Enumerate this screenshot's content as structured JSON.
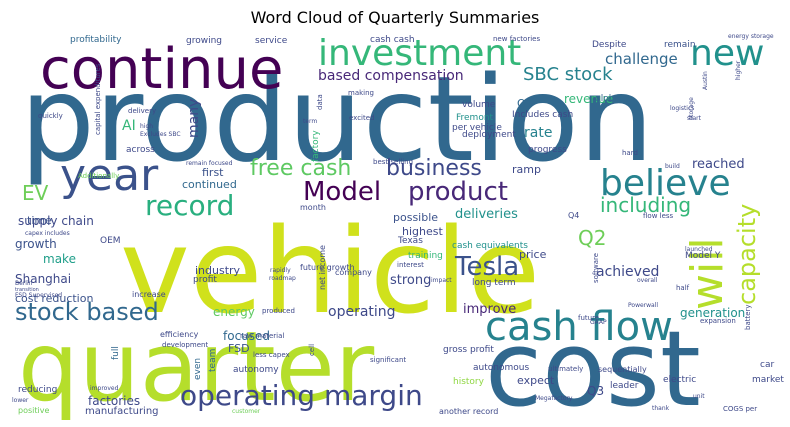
{
  "title": "Word Cloud of Quarterly Summaries",
  "words": [
    {
      "text": "production",
      "color": "#31688e"
    },
    {
      "text": "vehicle",
      "color": "#d0e11c"
    },
    {
      "text": "quarter",
      "color": "#b5de2b"
    },
    {
      "text": "cost",
      "color": "#31688e"
    },
    {
      "text": "continue",
      "color": "#440154"
    },
    {
      "text": "investment",
      "color": "#35b779"
    },
    {
      "text": "new",
      "color": "#21918c"
    },
    {
      "text": "year",
      "color": "#3b528b"
    },
    {
      "text": "believe",
      "color": "#26828e"
    },
    {
      "text": "will",
      "color": "#b5de2b"
    },
    {
      "text": "cash flow",
      "color": "#26828e"
    },
    {
      "text": "Model",
      "color": "#440154"
    },
    {
      "text": "product",
      "color": "#482878"
    },
    {
      "text": "record",
      "color": "#29af7f"
    },
    {
      "text": "free cash",
      "color": "#5ec962"
    },
    {
      "text": "business",
      "color": "#3e4989"
    },
    {
      "text": "capacity",
      "color": "#b5de2b"
    },
    {
      "text": "Tesla",
      "color": "#3b528b"
    },
    {
      "text": "operating margin",
      "color": "#3e4989"
    },
    {
      "text": "stock based",
      "color": "#31688e"
    },
    {
      "text": "including",
      "color": "#35b779"
    },
    {
      "text": "SBC stock",
      "color": "#26828e"
    },
    {
      "text": "based compensation",
      "color": "#482878"
    },
    {
      "text": "challenge",
      "color": "#31688e"
    },
    {
      "text": "Q2",
      "color": "#6ece58"
    },
    {
      "text": "EV",
      "color": "#6ece58"
    },
    {
      "text": "AI",
      "color": "#35b779"
    },
    {
      "text": "many",
      "color": "#3e4989"
    },
    {
      "text": "supply chain",
      "color": "#3e4989"
    },
    {
      "text": "revenue",
      "color": "#35b779"
    },
    {
      "text": "rate",
      "color": "#26828e"
    },
    {
      "text": "reached",
      "color": "#3e4989"
    },
    {
      "text": "deliveries",
      "color": "#21918c"
    },
    {
      "text": "possible",
      "color": "#3b528b"
    },
    {
      "text": "achieved",
      "color": "#3e4989"
    },
    {
      "text": "operating",
      "color": "#3e4989"
    },
    {
      "text": "improve",
      "color": "#482878"
    },
    {
      "text": "strong",
      "color": "#3e4989"
    },
    {
      "text": "generation",
      "color": "#21918c"
    },
    {
      "text": "growth",
      "color": "#3b528b"
    },
    {
      "text": "make",
      "color": "#1f9e89"
    },
    {
      "text": "Shanghai",
      "color": "#3e4989"
    },
    {
      "text": "cost reduction",
      "color": "#3b528b"
    },
    {
      "text": "industry",
      "color": "#3e4989"
    },
    {
      "text": "energy",
      "color": "#5ec962"
    },
    {
      "text": "focused",
      "color": "#31688e"
    },
    {
      "text": "FSD",
      "color": "#3b528b"
    },
    {
      "text": "factories",
      "color": "#3e4989"
    },
    {
      "text": "manufacturing",
      "color": "#3e4989"
    },
    {
      "text": "Q3",
      "color": "#3e4989"
    },
    {
      "text": "expect",
      "color": "#3e4989"
    },
    {
      "text": "first",
      "color": "#3b528b"
    },
    {
      "text": "continued",
      "color": "#31688e"
    },
    {
      "text": "time",
      "color": "#3b528b"
    },
    {
      "text": "highest",
      "color": "#3e4989"
    },
    {
      "text": "price",
      "color": "#3e4989"
    },
    {
      "text": "ramp",
      "color": "#3e4989"
    },
    {
      "text": "Q1",
      "color": "#31688e"
    },
    {
      "text": "volume",
      "color": "#3e4989"
    },
    {
      "text": "Fremont",
      "color": "#21918c"
    },
    {
      "text": "per vehicle",
      "color": "#3e4989"
    },
    {
      "text": "Includes cash",
      "color": "#3e4989"
    },
    {
      "text": "deployment",
      "color": "#3e4989"
    },
    {
      "text": "progress",
      "color": "#3e4989"
    },
    {
      "text": "remain",
      "color": "#3b528b"
    },
    {
      "text": "global",
      "color": "#31688e"
    },
    {
      "text": "Model Y",
      "color": "#3e4989"
    },
    {
      "text": "long term",
      "color": "#3e4989"
    },
    {
      "text": "training",
      "color": "#35b779"
    },
    {
      "text": "Texas",
      "color": "#3e4989"
    },
    {
      "text": "cash equivalents",
      "color": "#21918c"
    },
    {
      "text": "gross profit",
      "color": "#3e4989"
    },
    {
      "text": "autonomous",
      "color": "#3e4989"
    },
    {
      "text": "history",
      "color": "#90d743"
    },
    {
      "text": "another record",
      "color": "#3e4989"
    },
    {
      "text": "sequentially",
      "color": "#3e4989"
    },
    {
      "text": "team",
      "color": "#31688e"
    },
    {
      "text": "profit",
      "color": "#3e4989"
    },
    {
      "text": "autonomy",
      "color": "#3e4989"
    },
    {
      "text": "full",
      "color": "#31688e"
    },
    {
      "text": "even",
      "color": "#31688e"
    },
    {
      "text": "increase",
      "color": "#3e4989"
    },
    {
      "text": "growing",
      "color": "#3e4989"
    },
    {
      "text": "service",
      "color": "#3e4989"
    },
    {
      "text": "cash cash",
      "color": "#3e4989"
    },
    {
      "text": "profitability",
      "color": "#31688e"
    },
    {
      "text": "across",
      "color": "#3e4989"
    },
    {
      "text": "Despite",
      "color": "#3e4989"
    },
    {
      "text": "new factories",
      "color": "#3e4989"
    },
    {
      "text": "quickly",
      "color": "#3e4989"
    },
    {
      "text": "delivery",
      "color": "#3e4989"
    },
    {
      "text": "Excludes SBC",
      "color": "#3e4989"
    },
    {
      "text": "high",
      "color": "#3e4989"
    },
    {
      "text": "Additionally",
      "color": "#6ece58"
    },
    {
      "text": "capex includes",
      "color": "#3e4989"
    },
    {
      "text": "OEM",
      "color": "#3e4989"
    },
    {
      "text": "Berlin",
      "color": "#3e4989"
    },
    {
      "text": "FSD Supervised",
      "color": "#3e4989"
    },
    {
      "text": "transition",
      "color": "#3e4989"
    },
    {
      "text": "reducing",
      "color": "#3e4989"
    },
    {
      "text": "positive",
      "color": "#6ece58"
    },
    {
      "text": "lower",
      "color": "#3e4989"
    },
    {
      "text": "improved",
      "color": "#3e4989"
    },
    {
      "text": "customer",
      "color": "#6ece58"
    },
    {
      "text": "leader",
      "color": "#3e4989"
    },
    {
      "text": "electric",
      "color": "#3e4989"
    },
    {
      "text": "market",
      "color": "#3e4989"
    },
    {
      "text": "car",
      "color": "#3e4989"
    },
    {
      "text": "COGS per",
      "color": "#3e4989"
    },
    {
      "text": "thank",
      "color": "#3e4989"
    },
    {
      "text": "unit",
      "color": "#3e4989"
    },
    {
      "text": "Megafactory",
      "color": "#3e4989"
    },
    {
      "text": "ultimately",
      "color": "#3e4989"
    },
    {
      "text": "software",
      "color": "#3e4989"
    },
    {
      "text": "expansion",
      "color": "#3e4989"
    },
    {
      "text": "battery",
      "color": "#3e4989"
    },
    {
      "text": "half",
      "color": "#3e4989"
    },
    {
      "text": "Q4",
      "color": "#3e4989"
    },
    {
      "text": "flow less",
      "color": "#3e4989"
    },
    {
      "text": "launched",
      "color": "#3e4989"
    },
    {
      "text": "build",
      "color": "#3e4989"
    },
    {
      "text": "hard",
      "color": "#3e4989"
    },
    {
      "text": "energy storage",
      "color": "#3e4989"
    },
    {
      "text": "higher",
      "color": "#3e4989"
    },
    {
      "text": "storage",
      "color": "#3e4989"
    },
    {
      "text": "start",
      "color": "#3e4989"
    },
    {
      "text": "logistics",
      "color": "#3e4989"
    },
    {
      "text": "Austin",
      "color": "#3e4989"
    },
    {
      "text": "capital expenditures",
      "color": "#3e4989"
    },
    {
      "text": "factory",
      "color": "#35b779"
    },
    {
      "text": "data",
      "color": "#3e4989"
    },
    {
      "text": "making",
      "color": "#3e4989"
    },
    {
      "text": "excited",
      "color": "#3e4989"
    },
    {
      "text": "term",
      "color": "#3e4989"
    },
    {
      "text": "month",
      "color": "#3e4989"
    },
    {
      "text": "future growth",
      "color": "#3e4989"
    },
    {
      "text": "net income",
      "color": "#3e4989"
    },
    {
      "text": "company",
      "color": "#3e4989"
    },
    {
      "text": "roadmap",
      "color": "#3e4989"
    },
    {
      "text": "rapidly",
      "color": "#3e4989"
    },
    {
      "text": "raw material",
      "color": "#3e4989"
    },
    {
      "text": "less capex",
      "color": "#3e4989"
    },
    {
      "text": "cell",
      "color": "#3e4989"
    },
    {
      "text": "produced",
      "color": "#3e4989"
    },
    {
      "text": "efficiency",
      "color": "#3e4989"
    },
    {
      "text": "development",
      "color": "#3e4989"
    },
    {
      "text": "significant",
      "color": "#3e4989"
    },
    {
      "text": "remain focused",
      "color": "#3e4989"
    },
    {
      "text": "best selling",
      "color": "#3e4989"
    },
    {
      "text": "interest",
      "color": "#3e4989"
    },
    {
      "text": "impact",
      "color": "#3e4989"
    },
    {
      "text": "future",
      "color": "#3e4989"
    },
    {
      "text": "overall",
      "color": "#3e4989"
    },
    {
      "text": "Powerwall",
      "color": "#3e4989"
    },
    {
      "text": "GAAP",
      "color": "#3e4989"
    }
  ]
}
